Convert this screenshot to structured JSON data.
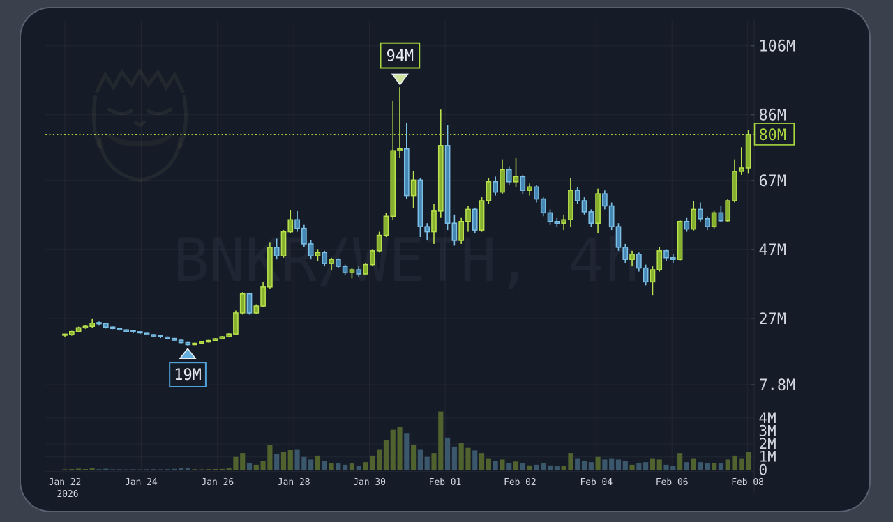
{
  "window": {
    "background_outer": "#3b404d",
    "panel_background": "#161b28",
    "panel_border": "#596070"
  },
  "watermark": {
    "text": "BNKR/WETH, 4h",
    "logo": "bearded-man-face"
  },
  "price_axis": {
    "ticks": [
      {
        "label": "106M",
        "value": 106
      },
      {
        "label": "86M",
        "value": 86
      },
      {
        "label": "67M",
        "value": 67
      },
      {
        "label": "47M",
        "value": 47
      },
      {
        "label": "27M",
        "value": 27
      },
      {
        "label": "7.8M",
        "value": 7.8
      }
    ],
    "current_price": {
      "label": "80M",
      "value": 80.3
    }
  },
  "volume_axis": {
    "ticks": [
      {
        "label": "4M",
        "value": 4
      },
      {
        "label": "3M",
        "value": 3
      },
      {
        "label": "2M",
        "value": 2
      },
      {
        "label": "1M",
        "value": 1
      },
      {
        "label": "0",
        "value": 0
      }
    ]
  },
  "time_axis": {
    "ticks": [
      {
        "label": "Jan 22",
        "sub": "2026"
      },
      {
        "label": "Jan 24"
      },
      {
        "label": "Jan 26"
      },
      {
        "label": "Jan 28"
      },
      {
        "label": "Jan 30"
      },
      {
        "label": "Feb 01"
      },
      {
        "label": "Feb 02"
      },
      {
        "label": "Feb 04"
      },
      {
        "label": "Feb 06"
      },
      {
        "label": "Feb 08"
      }
    ]
  },
  "markers": {
    "high": {
      "label": "94M",
      "candle_index": 49,
      "direction": "down"
    },
    "low": {
      "label": "19M",
      "candle_index": 18,
      "direction": "up"
    }
  },
  "colors": {
    "up_body": "#87b02f",
    "up_border": "#b9e24e",
    "down_body": "#4687b4",
    "down_border": "#7cc0e6",
    "vol_up": "#50622e",
    "vol_down": "#3b576b",
    "grid": "rgba(255,255,255,0.05)",
    "axis_text": "#d4d7df",
    "accent": "#a9d83f",
    "marker_blue": "#4fa3d8",
    "label_text": "#e9ecf1",
    "tick_mark": "#39404f"
  },
  "chart_data": {
    "type": "candlestick",
    "symbol": "BNKR/WETH",
    "interval": "4h",
    "title": "BNKR/WETH, 4h",
    "unit": "millions (market cap / price scale shown with M suffix)",
    "price_range": [
      7.8,
      106
    ],
    "volume_range": [
      0,
      4.5
    ],
    "price_tick_values": [
      106,
      86,
      67,
      47,
      27,
      7.8
    ],
    "volume_tick_values": [
      4,
      3,
      2,
      1,
      0
    ],
    "x_tick_labels": [
      "Jan 22",
      "Jan 24",
      "Jan 26",
      "Jan 28",
      "Jan 30",
      "Feb 01",
      "Feb 02",
      "Feb 04",
      "Feb 06",
      "Feb 08"
    ],
    "x_start_year": "2026",
    "dotted_line_price": 80.3,
    "high_annotation": {
      "price": 94,
      "label": "94M"
    },
    "low_annotation": {
      "price": 19,
      "label": "19M"
    },
    "legend_position": "none",
    "grid": true,
    "series_format": [
      "open",
      "high",
      "low",
      "close",
      "volume"
    ],
    "candles": [
      [
        22.0,
        22.6,
        21.6,
        22.3,
        0.05
      ],
      [
        22.3,
        23.4,
        22.0,
        23.2,
        0.07
      ],
      [
        23.2,
        24.6,
        23.0,
        24.3,
        0.1
      ],
      [
        24.3,
        25.0,
        24.0,
        24.7,
        0.07
      ],
      [
        24.7,
        26.8,
        24.3,
        25.6,
        0.12
      ],
      [
        25.6,
        26.1,
        24.9,
        25.5,
        0.06
      ],
      [
        25.5,
        25.7,
        24.1,
        24.5,
        0.09
      ],
      [
        24.5,
        24.7,
        23.9,
        24.1,
        0.05
      ],
      [
        24.1,
        24.3,
        23.5,
        23.7,
        0.05
      ],
      [
        23.7,
        23.9,
        23.1,
        23.3,
        0.04
      ],
      [
        23.3,
        23.5,
        22.7,
        23.0,
        0.05
      ],
      [
        23.0,
        23.2,
        22.5,
        22.7,
        0.04
      ],
      [
        22.7,
        22.9,
        22.1,
        22.3,
        0.05
      ],
      [
        22.3,
        22.5,
        21.7,
        21.9,
        0.06
      ],
      [
        21.9,
        22.1,
        21.3,
        21.6,
        0.05
      ],
      [
        21.6,
        21.8,
        21.0,
        21.2,
        0.06
      ],
      [
        21.2,
        21.4,
        20.5,
        20.7,
        0.08
      ],
      [
        20.7,
        20.9,
        19.7,
        20.0,
        0.14
      ],
      [
        20.0,
        20.2,
        19.0,
        19.4,
        0.12
      ],
      [
        19.4,
        20.0,
        19.2,
        19.8,
        0.06
      ],
      [
        19.8,
        20.4,
        19.6,
        20.2,
        0.05
      ],
      [
        20.2,
        20.8,
        20.0,
        20.6,
        0.06
      ],
      [
        20.6,
        21.3,
        20.4,
        21.1,
        0.07
      ],
      [
        21.1,
        21.9,
        20.9,
        21.7,
        0.08
      ],
      [
        21.7,
        22.7,
        21.5,
        22.5,
        0.12
      ],
      [
        22.5,
        29.3,
        22.3,
        28.6,
        1.0
      ],
      [
        28.6,
        34.6,
        28.1,
        34.1,
        1.3
      ],
      [
        34.1,
        34.4,
        28.1,
        28.6,
        0.55
      ],
      [
        28.6,
        31.1,
        28.2,
        30.6,
        0.4
      ],
      [
        30.6,
        37.6,
        30.3,
        36.1,
        0.7
      ],
      [
        36.1,
        49.1,
        35.6,
        47.6,
        1.9
      ],
      [
        47.6,
        50.1,
        44.1,
        45.1,
        1.2
      ],
      [
        45.1,
        52.6,
        44.6,
        52.1,
        1.4
      ],
      [
        52.1,
        58.4,
        51.6,
        55.6,
        1.55
      ],
      [
        55.6,
        58.1,
        52.1,
        53.1,
        1.6
      ],
      [
        53.1,
        54.1,
        47.6,
        48.6,
        1.0
      ],
      [
        48.6,
        49.6,
        44.1,
        45.1,
        0.8
      ],
      [
        45.1,
        47.1,
        43.6,
        46.1,
        1.1
      ],
      [
        46.1,
        46.6,
        42.1,
        42.9,
        0.7
      ],
      [
        42.9,
        44.6,
        41.1,
        44.1,
        0.5
      ],
      [
        44.1,
        44.4,
        41.6,
        42.1,
        0.5
      ],
      [
        42.1,
        42.6,
        39.6,
        40.3,
        0.4
      ],
      [
        40.3,
        41.6,
        38.6,
        41.1,
        0.5
      ],
      [
        41.1,
        42.1,
        39.1,
        39.9,
        0.3
      ],
      [
        39.9,
        43.1,
        39.6,
        42.6,
        0.6
      ],
      [
        42.6,
        47.1,
        42.1,
        46.6,
        1.1
      ],
      [
        46.6,
        52.1,
        46.1,
        51.1,
        1.6
      ],
      [
        51.1,
        57.6,
        50.6,
        56.6,
        2.3
      ],
      [
        56.6,
        90.0,
        55.6,
        75.6,
        3.1
      ],
      [
        75.6,
        94.0,
        73.6,
        76.1,
        3.3
      ],
      [
        76.1,
        83.6,
        61.6,
        62.6,
        2.8
      ],
      [
        62.6,
        69.6,
        59.1,
        67.1,
        1.9
      ],
      [
        67.1,
        67.6,
        50.6,
        53.6,
        1.6
      ],
      [
        53.6,
        54.6,
        49.6,
        52.1,
        1.0
      ],
      [
        52.1,
        60.1,
        48.6,
        58.1,
        1.3
      ],
      [
        58.1,
        87.5,
        56.1,
        77.1,
        4.5
      ],
      [
        77.1,
        83.1,
        52.6,
        54.6,
        2.5
      ],
      [
        54.6,
        57.1,
        48.1,
        49.6,
        1.8
      ],
      [
        49.6,
        56.1,
        48.6,
        55.1,
        2.1
      ],
      [
        55.1,
        59.6,
        52.1,
        58.6,
        1.7
      ],
      [
        58.6,
        59.1,
        51.6,
        52.6,
        1.5
      ],
      [
        52.6,
        62.1,
        52.1,
        61.1,
        1.3
      ],
      [
        61.1,
        67.6,
        60.1,
        66.6,
        0.9
      ],
      [
        66.6,
        68.1,
        62.6,
        63.6,
        0.7
      ],
      [
        63.6,
        73.1,
        63.1,
        70.1,
        0.8
      ],
      [
        70.1,
        71.1,
        65.6,
        66.6,
        0.55
      ],
      [
        66.6,
        73.6,
        65.1,
        68.1,
        0.65
      ],
      [
        68.1,
        68.6,
        63.1,
        64.1,
        0.5
      ],
      [
        64.1,
        66.1,
        62.6,
        65.1,
        0.35
      ],
      [
        65.1,
        65.6,
        60.6,
        61.6,
        0.4
      ],
      [
        61.6,
        62.1,
        56.6,
        57.6,
        0.5
      ],
      [
        57.6,
        58.6,
        54.1,
        55.1,
        0.35
      ],
      [
        55.1,
        56.1,
        53.6,
        54.6,
        0.28
      ],
      [
        54.6,
        57.1,
        52.6,
        55.6,
        0.3
      ],
      [
        55.6,
        67.6,
        53.6,
        64.1,
        1.3
      ],
      [
        64.1,
        65.1,
        60.1,
        61.1,
        0.9
      ],
      [
        61.1,
        62.1,
        57.1,
        57.9,
        0.7
      ],
      [
        57.9,
        58.6,
        53.6,
        54.6,
        0.6
      ],
      [
        54.6,
        64.6,
        51.6,
        63.1,
        1.0
      ],
      [
        63.1,
        64.1,
        58.6,
        59.6,
        0.8
      ],
      [
        59.6,
        60.6,
        52.6,
        53.6,
        0.9
      ],
      [
        53.6,
        54.6,
        46.6,
        47.6,
        0.8
      ],
      [
        47.6,
        48.6,
        43.1,
        44.1,
        0.7
      ],
      [
        44.1,
        46.6,
        42.1,
        45.6,
        0.4
      ],
      [
        45.6,
        46.1,
        40.6,
        41.6,
        0.5
      ],
      [
        41.6,
        42.6,
        36.6,
        37.6,
        0.6
      ],
      [
        37.6,
        42.1,
        33.6,
        41.1,
        0.9
      ],
      [
        41.1,
        47.6,
        40.6,
        46.6,
        0.8
      ],
      [
        46.6,
        47.1,
        43.6,
        44.6,
        0.4
      ],
      [
        44.6,
        45.6,
        43.1,
        44.1,
        0.3
      ],
      [
        44.1,
        55.6,
        43.6,
        55.1,
        1.3
      ],
      [
        55.1,
        56.1,
        52.1,
        52.9,
        0.6
      ],
      [
        52.9,
        61.1,
        52.5,
        58.6,
        0.9
      ],
      [
        58.6,
        60.6,
        55.1,
        55.9,
        0.6
      ],
      [
        55.9,
        56.6,
        52.6,
        53.6,
        0.5
      ],
      [
        53.6,
        58.1,
        53.1,
        57.6,
        0.55
      ],
      [
        57.6,
        59.6,
        54.9,
        55.3,
        0.5
      ],
      [
        55.3,
        61.6,
        54.9,
        61.1,
        0.8
      ],
      [
        61.1,
        73.1,
        60.6,
        69.6,
        1.1
      ],
      [
        69.6,
        76.6,
        68.6,
        70.6,
        0.9
      ],
      [
        70.6,
        81.5,
        69.1,
        80.3,
        1.4
      ]
    ]
  }
}
